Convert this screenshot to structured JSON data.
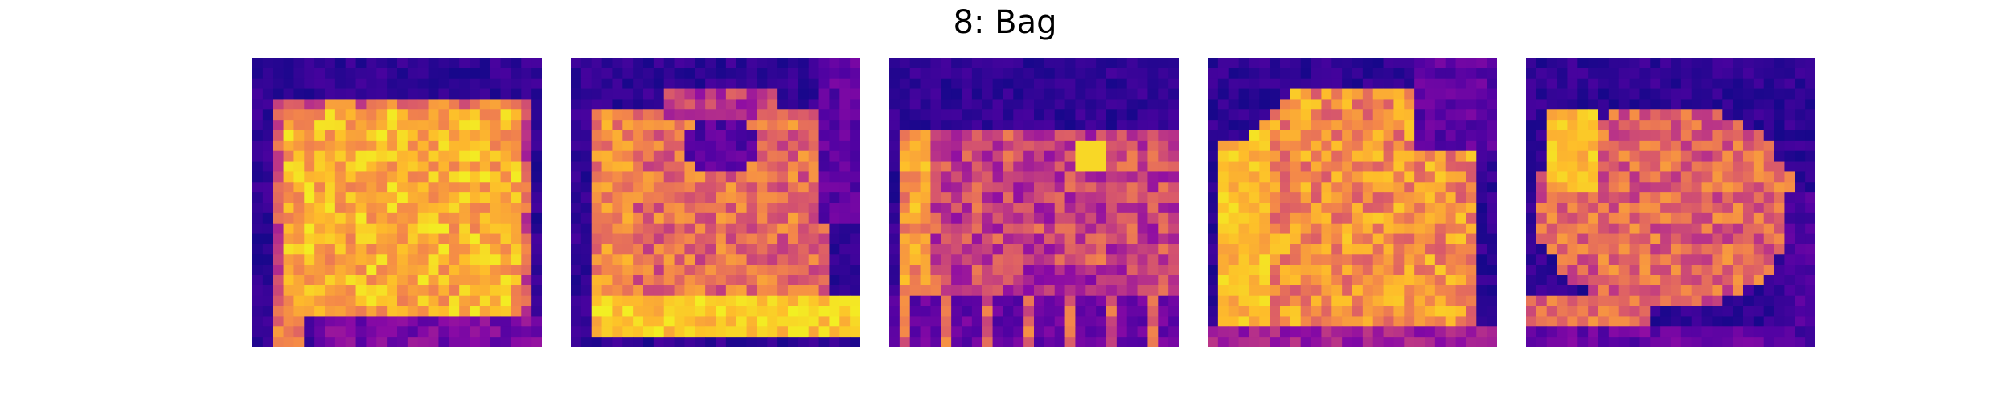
{
  "figure": {
    "title": "8: Bag"
  },
  "colormap": {
    "name": "plasma",
    "stops": [
      "#0d0887",
      "#5302a3",
      "#8b0aa5",
      "#b83289",
      "#db5c68",
      "#f48849",
      "#febd2a",
      "#f0f921"
    ]
  },
  "chart_data": [
    {
      "type": "heatmap",
      "title": "",
      "grid_size": 28,
      "shape": "wide-rectangle-bag",
      "description_pixels": "sample-1",
      "value_range": [
        0,
        1
      ]
    },
    {
      "type": "heatmap",
      "title": "",
      "grid_size": 28,
      "shape": "handbag-with-handle-hole",
      "value_range": [
        0,
        1
      ]
    },
    {
      "type": "heatmap",
      "title": "",
      "grid_size": 28,
      "shape": "striped-purse",
      "value_range": [
        0,
        1
      ]
    },
    {
      "type": "heatmap",
      "title": "",
      "grid_size": 28,
      "shape": "tall-bag",
      "value_range": [
        0,
        1
      ]
    },
    {
      "type": "heatmap",
      "title": "",
      "grid_size": 28,
      "shape": "rounded-clutch",
      "value_range": [
        0,
        1
      ]
    }
  ]
}
